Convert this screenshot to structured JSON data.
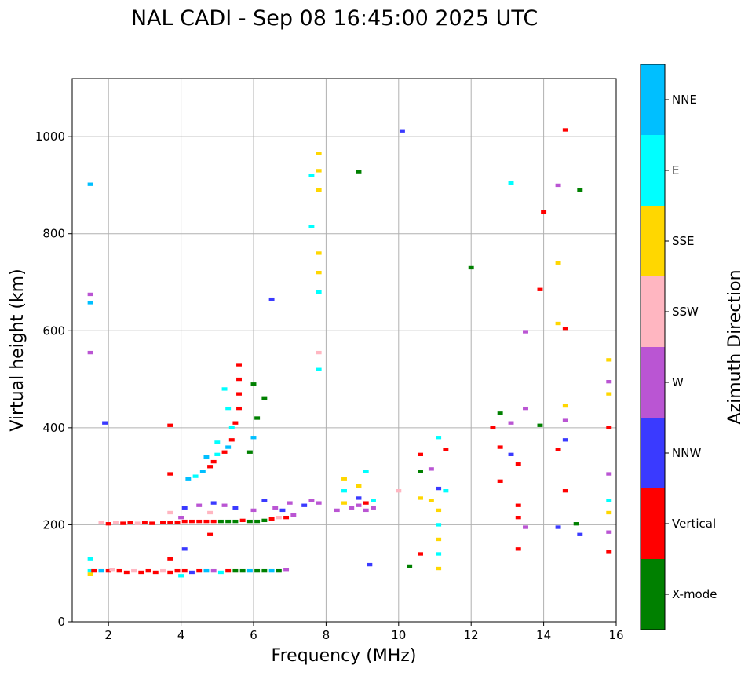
{
  "chart_data": {
    "type": "scatter",
    "title": "NAL CADI - Sep 08 16:45:00 2025 UTC",
    "xlabel": "Frequency (MHz)",
    "ylabel": "Virtual height (km)",
    "xlim": [
      1,
      16
    ],
    "ylim": [
      0,
      1120
    ],
    "xticks": [
      2,
      4,
      6,
      8,
      10,
      12,
      14,
      16
    ],
    "yticks": [
      0,
      200,
      400,
      600,
      800,
      1000
    ],
    "grid": true,
    "colorbar": {
      "label": "Azimuth Direction",
      "placement": "right",
      "categories": [
        {
          "name": "X-mode",
          "color": "#008000"
        },
        {
          "name": "Vertical",
          "color": "#ff0000"
        },
        {
          "name": "NNW",
          "color": "#3a3aff"
        },
        {
          "name": "W",
          "color": "#ba55d3"
        },
        {
          "name": "SSW",
          "color": "#ffb6c1"
        },
        {
          "name": "SSE",
          "color": "#ffd700"
        },
        {
          "name": "E",
          "color": "#00ffff"
        },
        {
          "name": "NNE",
          "color": "#00bfff"
        }
      ]
    },
    "point_format": [
      "frequency_MHz",
      "height_km",
      "direction_index"
    ],
    "points": [
      [
        1.5,
        105,
        6
      ],
      [
        1.5,
        98,
        5
      ],
      [
        1.6,
        105,
        1
      ],
      [
        1.8,
        105,
        7
      ],
      [
        2.0,
        105,
        1
      ],
      [
        2.1,
        108,
        4
      ],
      [
        2.3,
        105,
        1
      ],
      [
        2.5,
        102,
        1
      ],
      [
        2.7,
        105,
        4
      ],
      [
        2.9,
        102,
        1
      ],
      [
        3.1,
        105,
        1
      ],
      [
        3.3,
        102,
        1
      ],
      [
        3.5,
        105,
        4
      ],
      [
        3.7,
        102,
        1
      ],
      [
        3.9,
        105,
        1
      ],
      [
        4.1,
        105,
        1
      ],
      [
        4.3,
        102,
        2
      ],
      [
        4.5,
        105,
        1
      ],
      [
        4.7,
        105,
        7
      ],
      [
        4.9,
        105,
        3
      ],
      [
        5.1,
        102,
        6
      ],
      [
        5.3,
        105,
        1
      ],
      [
        5.5,
        105,
        0
      ],
      [
        5.7,
        105,
        0
      ],
      [
        5.9,
        105,
        7
      ],
      [
        6.1,
        105,
        0
      ],
      [
        6.3,
        105,
        0
      ],
      [
        6.5,
        105,
        7
      ],
      [
        6.7,
        105,
        0
      ],
      [
        6.9,
        108,
        3
      ],
      [
        4.0,
        95,
        6
      ],
      [
        1.5,
        130,
        6
      ],
      [
        3.7,
        130,
        1
      ],
      [
        4.8,
        180,
        1
      ],
      [
        4.1,
        150,
        2
      ],
      [
        1.8,
        205,
        4
      ],
      [
        2.0,
        202,
        1
      ],
      [
        2.2,
        205,
        4
      ],
      [
        2.4,
        203,
        1
      ],
      [
        2.6,
        205,
        1
      ],
      [
        2.8,
        203,
        4
      ],
      [
        3.0,
        205,
        1
      ],
      [
        3.2,
        203,
        1
      ],
      [
        3.5,
        205,
        1
      ],
      [
        3.7,
        205,
        1
      ],
      [
        3.9,
        205,
        1
      ],
      [
        4.1,
        207,
        1
      ],
      [
        4.3,
        207,
        1
      ],
      [
        4.5,
        207,
        1
      ],
      [
        4.7,
        207,
        1
      ],
      [
        4.9,
        207,
        1
      ],
      [
        5.1,
        207,
        0
      ],
      [
        5.3,
        207,
        0
      ],
      [
        5.5,
        207,
        0
      ],
      [
        5.7,
        209,
        1
      ],
      [
        5.9,
        207,
        0
      ],
      [
        6.1,
        207,
        0
      ],
      [
        6.3,
        209,
        0
      ],
      [
        6.5,
        212,
        1
      ],
      [
        6.7,
        215,
        4
      ],
      [
        6.9,
        215,
        1
      ],
      [
        7.1,
        220,
        3
      ],
      [
        3.7,
        225,
        4
      ],
      [
        4.1,
        235,
        2
      ],
      [
        4.5,
        240,
        3
      ],
      [
        4.9,
        245,
        2
      ],
      [
        5.2,
        240,
        3
      ],
      [
        5.5,
        235,
        2
      ],
      [
        6.3,
        250,
        2
      ],
      [
        6.6,
        235,
        3
      ],
      [
        7.0,
        245,
        3
      ],
      [
        7.4,
        240,
        2
      ],
      [
        7.6,
        250,
        3
      ],
      [
        7.8,
        245,
        3
      ],
      [
        4.0,
        215,
        3
      ],
      [
        4.8,
        225,
        4
      ],
      [
        6.0,
        230,
        3
      ],
      [
        6.8,
        230,
        2
      ],
      [
        3.7,
        305,
        1
      ],
      [
        3.7,
        405,
        1
      ],
      [
        4.2,
        295,
        7
      ],
      [
        4.4,
        300,
        6
      ],
      [
        4.6,
        310,
        7
      ],
      [
        4.8,
        320,
        1
      ],
      [
        4.9,
        330,
        1
      ],
      [
        5.0,
        345,
        6
      ],
      [
        5.2,
        350,
        1
      ],
      [
        5.3,
        360,
        7
      ],
      [
        5.4,
        375,
        1
      ],
      [
        5.4,
        400,
        6
      ],
      [
        5.5,
        410,
        1
      ],
      [
        5.6,
        440,
        1
      ],
      [
        5.6,
        470,
        1
      ],
      [
        5.6,
        500,
        1
      ],
      [
        5.6,
        530,
        1
      ],
      [
        5.3,
        440,
        6
      ],
      [
        5.2,
        480,
        6
      ],
      [
        5.9,
        350,
        0
      ],
      [
        6.0,
        380,
        7
      ],
      [
        6.1,
        420,
        0
      ],
      [
        6.3,
        460,
        0
      ],
      [
        6.0,
        490,
        0
      ],
      [
        5.0,
        370,
        6
      ],
      [
        4.7,
        340,
        7
      ],
      [
        8.3,
        230,
        3
      ],
      [
        8.5,
        245,
        5
      ],
      [
        8.7,
        235,
        3
      ],
      [
        8.9,
        240,
        3
      ],
      [
        9.1,
        230,
        3
      ],
      [
        9.3,
        235,
        3
      ],
      [
        8.5,
        270,
        6
      ],
      [
        8.9,
        280,
        5
      ],
      [
        9.1,
        310,
        6
      ],
      [
        8.5,
        295,
        5
      ],
      [
        8.9,
        255,
        2
      ],
      [
        9.3,
        250,
        6
      ],
      [
        9.1,
        245,
        1
      ],
      [
        10.6,
        345,
        1
      ],
      [
        10.6,
        310,
        0
      ],
      [
        10.6,
        255,
        5
      ],
      [
        10.9,
        315,
        3
      ],
      [
        10.9,
        250,
        5
      ],
      [
        11.1,
        230,
        5
      ],
      [
        11.1,
        200,
        6
      ],
      [
        11.1,
        170,
        5
      ],
      [
        11.1,
        140,
        6
      ],
      [
        11.1,
        110,
        5
      ],
      [
        11.1,
        275,
        2
      ],
      [
        11.3,
        270,
        6
      ],
      [
        11.3,
        355,
        1
      ],
      [
        11.1,
        380,
        6
      ],
      [
        10.6,
        140,
        1
      ],
      [
        10.3,
        115,
        0
      ],
      [
        9.2,
        118,
        2
      ],
      [
        10.1,
        1012,
        2
      ],
      [
        10.0,
        270,
        4
      ],
      [
        12.6,
        400,
        1
      ],
      [
        12.8,
        360,
        1
      ],
      [
        12.8,
        430,
        0
      ],
      [
        12.8,
        290,
        1
      ],
      [
        13.1,
        345,
        2
      ],
      [
        13.1,
        410,
        3
      ],
      [
        13.3,
        325,
        1
      ],
      [
        13.3,
        240,
        1
      ],
      [
        13.3,
        215,
        1
      ],
      [
        13.3,
        150,
        1
      ],
      [
        13.5,
        598,
        3
      ],
      [
        13.5,
        440,
        3
      ],
      [
        13.5,
        195,
        3
      ],
      [
        13.9,
        405,
        0
      ],
      [
        13.9,
        685,
        1
      ],
      [
        14.0,
        845,
        1
      ],
      [
        14.4,
        355,
        1
      ],
      [
        14.4,
        740,
        5
      ],
      [
        14.4,
        900,
        3
      ],
      [
        14.4,
        615,
        5
      ],
      [
        14.4,
        195,
        2
      ],
      [
        14.6,
        445,
        5
      ],
      [
        14.6,
        415,
        3
      ],
      [
        14.6,
        605,
        1
      ],
      [
        14.6,
        375,
        2
      ],
      [
        14.6,
        270,
        1
      ],
      [
        14.6,
        1014,
        1
      ],
      [
        14.9,
        202,
        0
      ],
      [
        15.0,
        890,
        0
      ],
      [
        15.0,
        180,
        2
      ],
      [
        15.8,
        540,
        5
      ],
      [
        15.8,
        495,
        3
      ],
      [
        15.8,
        470,
        5
      ],
      [
        15.8,
        400,
        1
      ],
      [
        15.8,
        305,
        3
      ],
      [
        15.8,
        250,
        6
      ],
      [
        15.8,
        225,
        5
      ],
      [
        15.8,
        185,
        3
      ],
      [
        15.8,
        145,
        1
      ],
      [
        13.1,
        905,
        6
      ],
      [
        12.0,
        730,
        0
      ],
      [
        7.8,
        965,
        5
      ],
      [
        7.8,
        930,
        5
      ],
      [
        7.8,
        890,
        5
      ],
      [
        7.8,
        760,
        5
      ],
      [
        7.8,
        720,
        5
      ],
      [
        7.6,
        920,
        6
      ],
      [
        7.6,
        815,
        6
      ],
      [
        7.8,
        555,
        4
      ],
      [
        7.8,
        520,
        6
      ],
      [
        8.9,
        928,
        0
      ],
      [
        6.5,
        665,
        2
      ],
      [
        1.5,
        675,
        3
      ],
      [
        1.5,
        658,
        7
      ],
      [
        1.5,
        555,
        3
      ],
      [
        1.5,
        902,
        7
      ],
      [
        1.9,
        410,
        2
      ],
      [
        7.8,
        680,
        6
      ]
    ]
  }
}
